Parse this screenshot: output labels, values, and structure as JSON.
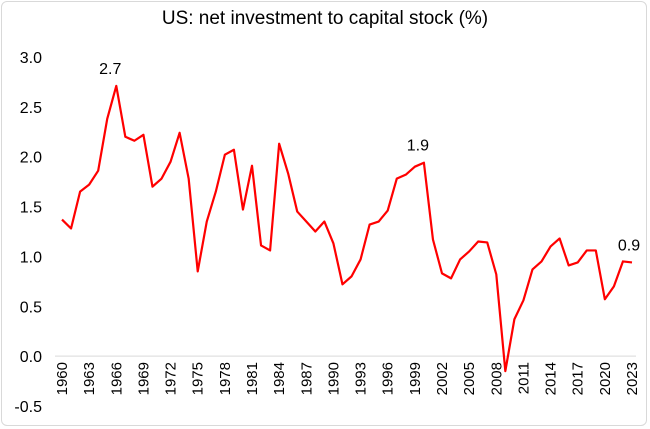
{
  "chart_data": {
    "type": "line",
    "title": "US: net investment to capital stock (%)",
    "xlabel": "",
    "ylabel": "",
    "ylim": [
      -0.5,
      3.0
    ],
    "yticks": [
      "-0.5",
      "0.0",
      "0.5",
      "1.0",
      "1.5",
      "2.0",
      "2.5",
      "3.0"
    ],
    "ytick_values": [
      -0.5,
      0,
      0.5,
      1.0,
      1.5,
      2.0,
      2.5,
      3.0
    ],
    "xtick_labels": [
      "1960",
      "1963",
      "1966",
      "1969",
      "1972",
      "1975",
      "1978",
      "1981",
      "1984",
      "1987",
      "1990",
      "1993",
      "1996",
      "1999",
      "2002",
      "2005",
      "2008",
      "2011",
      "2014",
      "2017",
      "2020",
      "2023"
    ],
    "grid": false,
    "line_color": "#ff0000",
    "x": [
      1960,
      1961,
      1962,
      1963,
      1964,
      1965,
      1966,
      1967,
      1968,
      1969,
      1970,
      1971,
      1972,
      1973,
      1974,
      1975,
      1976,
      1977,
      1978,
      1979,
      1980,
      1981,
      1982,
      1983,
      1984,
      1985,
      1986,
      1987,
      1988,
      1989,
      1990,
      1991,
      1992,
      1993,
      1994,
      1995,
      1996,
      1997,
      1998,
      1999,
      2000,
      2001,
      2002,
      2003,
      2004,
      2005,
      2006,
      2007,
      2008,
      2009,
      2010,
      2011,
      2012,
      2013,
      2014,
      2015,
      2016,
      2017,
      2018,
      2019,
      2020,
      2021,
      2022,
      2023
    ],
    "series": [
      {
        "values": [
          1.37,
          1.28,
          1.65,
          1.72,
          1.86,
          2.38,
          2.71,
          2.2,
          2.16,
          2.22,
          1.7,
          1.78,
          1.95,
          2.24,
          1.78,
          0.85,
          1.35,
          1.65,
          2.02,
          2.07,
          1.47,
          1.91,
          1.11,
          1.06,
          2.13,
          1.83,
          1.45,
          1.35,
          1.25,
          1.35,
          1.13,
          0.72,
          0.8,
          0.97,
          1.32,
          1.35,
          1.46,
          1.78,
          1.82,
          1.9,
          1.94,
          1.17,
          0.83,
          0.78,
          0.97,
          1.05,
          1.15,
          1.14,
          0.82,
          -0.15,
          0.37,
          0.56,
          0.87,
          0.95,
          1.1,
          1.18,
          0.91,
          0.94,
          1.06,
          1.06,
          0.57,
          0.7,
          0.95,
          0.94
        ]
      }
    ],
    "annotations": [
      {
        "x": 1966,
        "text": "2.7"
      },
      {
        "x": 2000,
        "text": "1.9"
      },
      {
        "x": 2023,
        "text": "0.9"
      }
    ]
  }
}
